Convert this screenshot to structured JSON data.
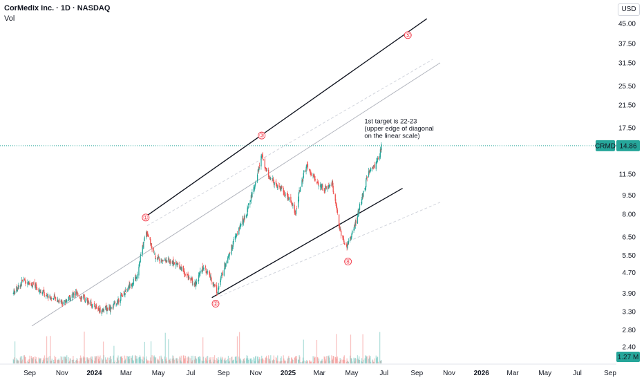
{
  "header": {
    "title": "CorMedix Inc. · 1D · NASDAQ",
    "vol_label": "Vol",
    "currency": "USD"
  },
  "colors": {
    "up": "#26a69a",
    "down": "#ef5350",
    "price_line": "#26a69a",
    "volume_badge": "#26a69a",
    "wave_label": "#f23645",
    "trendline": "#131722",
    "midline": "#b2b5be"
  },
  "chart_data": {
    "type": "candlestick",
    "symbol": "CRMD",
    "last_price": 14.86,
    "last_price_label": "14.86",
    "last_volume_label": "1.27 M",
    "y_scale": "log",
    "y_ticks": [
      "45.00",
      "37.50",
      "31.50",
      "25.50",
      "21.50",
      "17.50",
      "11.50",
      "9.50",
      "8.00",
      "6.50",
      "5.50",
      "4.70",
      "3.90",
      "3.30",
      "2.80",
      "2.40"
    ],
    "x_ticks": [
      {
        "label": "Sep",
        "bold": false
      },
      {
        "label": "Nov",
        "bold": false
      },
      {
        "label": "2024",
        "bold": true
      },
      {
        "label": "Mar",
        "bold": false
      },
      {
        "label": "May",
        "bold": false
      },
      {
        "label": "Jul",
        "bold": false
      },
      {
        "label": "Sep",
        "bold": false
      },
      {
        "label": "Nov",
        "bold": false
      },
      {
        "label": "2025",
        "bold": true
      },
      {
        "label": "Mar",
        "bold": false
      },
      {
        "label": "May",
        "bold": false
      },
      {
        "label": "Jul",
        "bold": false
      },
      {
        "label": "Sep",
        "bold": false
      },
      {
        "label": "Nov",
        "bold": false
      },
      {
        "label": "2026",
        "bold": true
      },
      {
        "label": "Mar",
        "bold": false
      },
      {
        "label": "May",
        "bold": false
      },
      {
        "label": "Jul",
        "bold": false
      },
      {
        "label": "Sep",
        "bold": false
      }
    ],
    "price_path": [
      [
        "2023-08-01",
        3.9
      ],
      [
        "2023-08-20",
        4.4
      ],
      [
        "2023-09-15",
        4.1
      ],
      [
        "2023-10-10",
        3.75
      ],
      [
        "2023-11-05",
        3.6
      ],
      [
        "2023-11-25",
        3.9
      ],
      [
        "2023-12-15",
        3.7
      ],
      [
        "2024-01-10",
        3.35
      ],
      [
        "2024-02-05",
        3.45
      ],
      [
        "2024-02-25",
        3.9
      ],
      [
        "2024-03-20",
        4.5
      ],
      [
        "2024-04-08",
        6.9
      ],
      [
        "2024-04-25",
        5.4
      ],
      [
        "2024-05-20",
        5.25
      ],
      [
        "2024-06-10",
        5.0
      ],
      [
        "2024-06-25",
        4.55
      ],
      [
        "2024-07-10",
        4.25
      ],
      [
        "2024-07-25",
        5.0
      ],
      [
        "2024-08-10",
        4.4
      ],
      [
        "2024-08-20",
        3.95
      ],
      [
        "2024-09-05",
        5.2
      ],
      [
        "2024-09-25",
        6.6
      ],
      [
        "2024-10-15",
        8.2
      ],
      [
        "2024-10-30",
        10.5
      ],
      [
        "2024-11-12",
        13.5
      ],
      [
        "2024-11-25",
        11.2
      ],
      [
        "2024-12-20",
        10.0
      ],
      [
        "2025-01-05",
        9.0
      ],
      [
        "2025-01-15",
        8.1
      ],
      [
        "2025-01-25",
        10.6
      ],
      [
        "2025-02-05",
        12.3
      ],
      [
        "2025-02-20",
        11.0
      ],
      [
        "2025-03-10",
        10.0
      ],
      [
        "2025-03-25",
        10.6
      ],
      [
        "2025-04-08",
        7.0
      ],
      [
        "2025-04-20",
        5.85
      ],
      [
        "2025-05-05",
        7.0
      ],
      [
        "2025-05-20",
        9.2
      ],
      [
        "2025-06-01",
        11.6
      ],
      [
        "2025-06-12",
        12.3
      ],
      [
        "2025-06-22",
        13.3
      ],
      [
        "2025-06-26",
        14.86
      ]
    ],
    "trendlines": [
      {
        "name": "upper",
        "from": [
          "2024-04-10",
          7.9
        ],
        "to": [
          "2025-09-20",
          47.0
        ],
        "style": "solid"
      },
      {
        "name": "middle",
        "from": [
          "2023-09-05",
          2.9
        ],
        "to": [
          "2025-10-15",
          31.5
        ],
        "style": "thin"
      },
      {
        "name": "lower",
        "from": [
          "2024-08-10",
          3.75
        ],
        "to": [
          "2025-08-05",
          10.1
        ],
        "style": "solid"
      },
      {
        "name": "upper-parallel",
        "from": [
          "2024-04-10",
          7.2
        ],
        "to": [
          "2025-10-01",
          32.5
        ],
        "style": "dashed"
      },
      {
        "name": "lower-parallel",
        "from": [
          "2024-08-25",
          3.8
        ],
        "to": [
          "2025-10-15",
          8.9
        ],
        "style": "dashed"
      }
    ],
    "wave_labels": [
      {
        "label": "①",
        "at": [
          "2024-04-07",
          7.75
        ]
      },
      {
        "label": "②",
        "at": [
          "2024-08-17",
          3.55
        ]
      },
      {
        "label": "③",
        "at": [
          "2024-11-12",
          16.3
        ]
      },
      {
        "label": "④",
        "at": [
          "2025-04-24",
          5.2
        ]
      },
      {
        "label": "⑤",
        "at": [
          "2025-08-15",
          40.5
        ]
      }
    ],
    "annotation": {
      "lines": [
        "1st target is 22-23",
        "(upper edge of diagonal",
        "on the linear scale)"
      ],
      "at": [
        "2025-05-25",
        18.2
      ]
    }
  }
}
